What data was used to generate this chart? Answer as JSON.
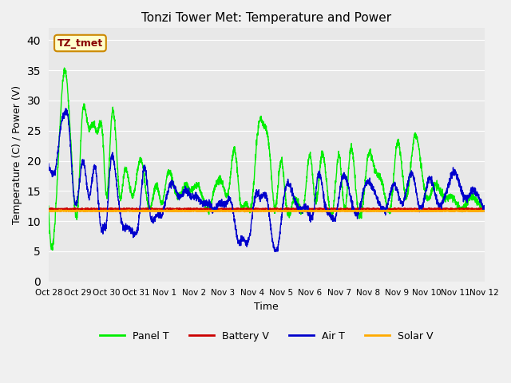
{
  "title": "Tonzi Tower Met: Temperature and Power",
  "xlabel": "Time",
  "ylabel": "Temperature (C) / Power (V)",
  "ylim": [
    0,
    42
  ],
  "yticks": [
    0,
    5,
    10,
    15,
    20,
    25,
    30,
    35,
    40
  ],
  "bg_color": "#e8e8e8",
  "fig_bg_color": "#f0f0f0",
  "annotation_text": "TZ_tmet",
  "annotation_bg": "#ffffcc",
  "annotation_border": "#cc8800",
  "annotation_text_color": "#880000",
  "legend_labels": [
    "Panel T",
    "Battery V",
    "Air T",
    "Solar V"
  ],
  "legend_colors": [
    "#00ee00",
    "#cc0000",
    "#0000cc",
    "#ffaa00"
  ],
  "x_tick_labels": [
    "Oct 28",
    "Oct 29",
    "Oct 30",
    "Oct 31",
    "Nov 1",
    "Nov 2",
    "Nov 3",
    "Nov 4",
    "Nov 5",
    "Nov 6",
    "Nov 7",
    "Nov 8",
    "Nov 9",
    "Nov 10",
    "Nov 11",
    "Nov 12"
  ],
  "battery_v": 12.0,
  "solar_v": 11.7,
  "panel_t_x": [
    0,
    0.3,
    0.55,
    0.65,
    0.8,
    1.0,
    1.15,
    1.35,
    1.55,
    1.7,
    1.85,
    2.0,
    2.15,
    2.3,
    2.45,
    2.6,
    2.75,
    2.9,
    3.05,
    3.2,
    3.35,
    3.5,
    3.7,
    3.9,
    4.1,
    4.3,
    4.5,
    4.7,
    4.9,
    5.1,
    5.3,
    5.5,
    5.75,
    6.0,
    6.2,
    6.4,
    6.6,
    6.8,
    7.0,
    7.2,
    7.4,
    7.6,
    7.8,
    8.0,
    8.2,
    8.4,
    8.6,
    8.8,
    9.0,
    9.2,
    9.4,
    9.6,
    9.8,
    10.0,
    10.2,
    10.4,
    10.6,
    10.8,
    11.0,
    11.2,
    11.5,
    11.8,
    12.0,
    12.3,
    12.6,
    12.8,
    13.0,
    13.3,
    13.6,
    13.9,
    14.2,
    14.5,
    14.8,
    15.0
  ],
  "panel_t_y": [
    12,
    17,
    35,
    32,
    20,
    12,
    27,
    26,
    26,
    25,
    25,
    14,
    26,
    25,
    14,
    18,
    17,
    14,
    18,
    20,
    15,
    12,
    16,
    13,
    18,
    16,
    14,
    16,
    15,
    16,
    14,
    12,
    16,
    16,
    15,
    22,
    13,
    13,
    13,
    25,
    26,
    22,
    12,
    20,
    12,
    13,
    13,
    13,
    21,
    13,
    21,
    15,
    12,
    21,
    12,
    22,
    14,
    12,
    21,
    19,
    16,
    13,
    23,
    14,
    24,
    20,
    14,
    16,
    14,
    14,
    12,
    14,
    13,
    12
  ],
  "air_t_x": [
    0,
    0.1,
    0.25,
    0.4,
    0.55,
    0.7,
    0.85,
    1.0,
    1.2,
    1.4,
    1.6,
    1.8,
    1.9,
    2.0,
    2.1,
    2.3,
    2.5,
    2.7,
    2.9,
    3.1,
    3.3,
    3.5,
    3.7,
    3.9,
    4.1,
    4.3,
    4.5,
    4.7,
    4.9,
    5.1,
    5.3,
    5.5,
    5.7,
    5.9,
    6.1,
    6.3,
    6.5,
    6.7,
    6.9,
    7.1,
    7.3,
    7.5,
    7.7,
    7.9,
    8.1,
    8.3,
    8.5,
    8.7,
    8.9,
    9.1,
    9.3,
    9.5,
    9.7,
    9.9,
    10.1,
    10.3,
    10.5,
    10.7,
    10.9,
    11.1,
    11.3,
    11.6,
    11.9,
    12.2,
    12.5,
    12.8,
    13.1,
    13.4,
    13.7,
    14.0,
    14.3,
    14.6,
    14.9,
    15.0
  ],
  "air_t_y": [
    19,
    18,
    19,
    25,
    28,
    26,
    15,
    14,
    20,
    14,
    19,
    9,
    9,
    10,
    18,
    18,
    10,
    9,
    8,
    10,
    19,
    11,
    11,
    11,
    15,
    16,
    14,
    15,
    14,
    14,
    13,
    13,
    12,
    13,
    13,
    13,
    7,
    7,
    7,
    14,
    14,
    14,
    7,
    6,
    14,
    16,
    13,
    12,
    12,
    11,
    18,
    13,
    11,
    11,
    17,
    16,
    12,
    12,
    16,
    16,
    14,
    12,
    16,
    13,
    18,
    12,
    17,
    13,
    15,
    18,
    14,
    15,
    13,
    12
  ]
}
